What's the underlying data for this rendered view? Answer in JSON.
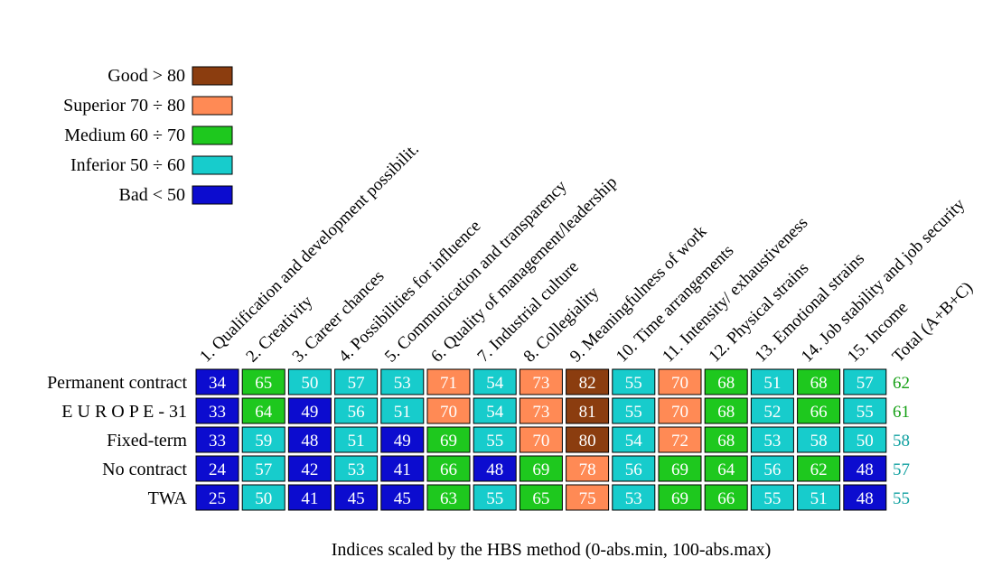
{
  "chart_data": {
    "type": "heatmap",
    "title": "",
    "xlabel": "Indices scaled by the HBS method (0-abs.min, 100-abs.max)",
    "ylabel": "",
    "columns": [
      "1. Qualification and development possibilit.",
      "2. Creativity",
      "3. Career chances",
      "4. Possibilities for influence",
      "5. Communication and transparency",
      "6. Quality of management/leadership",
      "7. Industrial culture",
      "8. Collegiality",
      "9. Meaningfulness of work",
      "10. Time arrangements",
      "11. Intensity/ exhaustiveness",
      "12. Physical strains",
      "13. Emotional strains",
      "14. Job stability and job security",
      "15. Income"
    ],
    "total_label": "Total (A+B+C)",
    "rows": [
      {
        "label": "Permanent contract",
        "values": [
          34,
          65,
          50,
          57,
          53,
          71,
          54,
          73,
          82,
          55,
          70,
          68,
          51,
          68,
          57
        ],
        "total": 62
      },
      {
        "label": "E U R O P E - 31",
        "values": [
          33,
          64,
          49,
          56,
          51,
          70,
          54,
          73,
          81,
          55,
          70,
          68,
          52,
          66,
          55
        ],
        "total": 61
      },
      {
        "label": "Fixed-term",
        "values": [
          33,
          59,
          48,
          51,
          49,
          69,
          55,
          70,
          80,
          54,
          72,
          68,
          53,
          58,
          50
        ],
        "total": 58
      },
      {
        "label": "No contract",
        "values": [
          24,
          57,
          42,
          53,
          41,
          66,
          48,
          69,
          78,
          56,
          69,
          64,
          56,
          62,
          48
        ],
        "total": 57
      },
      {
        "label": "TWA",
        "values": [
          25,
          50,
          41,
          45,
          45,
          63,
          55,
          65,
          75,
          53,
          69,
          66,
          55,
          51,
          48
        ],
        "total": 55
      }
    ],
    "legend": [
      {
        "label": "Good > 80",
        "color": "#8b3d0f",
        "min": 80
      },
      {
        "label": "Superior 70 ÷ 80",
        "color": "#ff8a55",
        "min": 70
      },
      {
        "label": "Medium 60 ÷ 70",
        "color": "#1ec81e",
        "min": 60
      },
      {
        "label": "Inferior 50 ÷ 60",
        "color": "#17cccc",
        "min": 50
      },
      {
        "label": "Bad < 50",
        "color": "#0c0ccf",
        "min": 0
      }
    ],
    "legend_position": "top-left",
    "grid": false
  }
}
